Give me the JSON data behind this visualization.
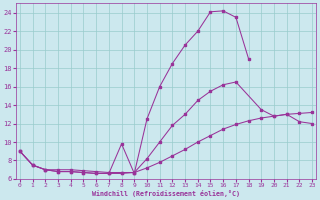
{
  "background_color": "#cce8ee",
  "line_color": "#993399",
  "grid_color": "#99cccc",
  "line1_x": [
    0,
    1,
    2,
    3,
    4,
    5,
    6,
    7,
    8,
    9,
    10,
    11,
    12,
    13,
    14,
    15,
    16,
    17,
    18
  ],
  "line1_y": [
    9.0,
    7.5,
    7.0,
    6.8,
    6.8,
    6.7,
    6.6,
    6.6,
    9.8,
    6.6,
    12.5,
    16.0,
    18.5,
    20.5,
    22.0,
    24.1,
    24.2,
    23.5,
    19.0
  ],
  "line2_x": [
    0,
    1,
    2,
    3,
    4,
    5,
    6,
    7,
    8,
    9,
    10,
    11,
    12,
    13,
    14,
    15,
    16,
    17,
    19,
    20,
    21,
    22,
    23
  ],
  "line2_y": [
    9.0,
    7.5,
    7.0,
    6.8,
    6.8,
    6.7,
    6.6,
    6.6,
    6.6,
    6.7,
    8.2,
    10.0,
    11.8,
    13.0,
    14.5,
    15.5,
    16.2,
    16.5,
    13.5,
    12.8,
    13.0,
    12.2,
    12.0
  ],
  "line3_x": [
    0,
    1,
    2,
    3,
    4,
    5,
    6,
    7,
    8,
    9,
    10,
    11,
    12,
    13,
    14,
    15,
    16,
    17,
    18,
    19,
    20,
    21,
    22,
    23
  ],
  "line3_y": [
    9.0,
    7.5,
    7.0,
    7.0,
    7.0,
    6.9,
    6.8,
    6.7,
    6.7,
    6.7,
    7.2,
    7.8,
    8.5,
    9.2,
    10.0,
    10.7,
    11.4,
    11.9,
    12.3,
    12.6,
    12.8,
    13.0,
    13.1,
    13.2
  ],
  "xlim": [
    -0.3,
    23.3
  ],
  "ylim": [
    6.0,
    25.0
  ],
  "yticks": [
    6,
    8,
    10,
    12,
    14,
    16,
    18,
    20,
    22,
    24
  ],
  "xticks": [
    0,
    1,
    2,
    3,
    4,
    5,
    6,
    7,
    8,
    9,
    10,
    11,
    12,
    13,
    14,
    15,
    16,
    17,
    18,
    19,
    20,
    21,
    22,
    23
  ],
  "xlabel": "Windchill (Refroidissement éolien,°C)"
}
